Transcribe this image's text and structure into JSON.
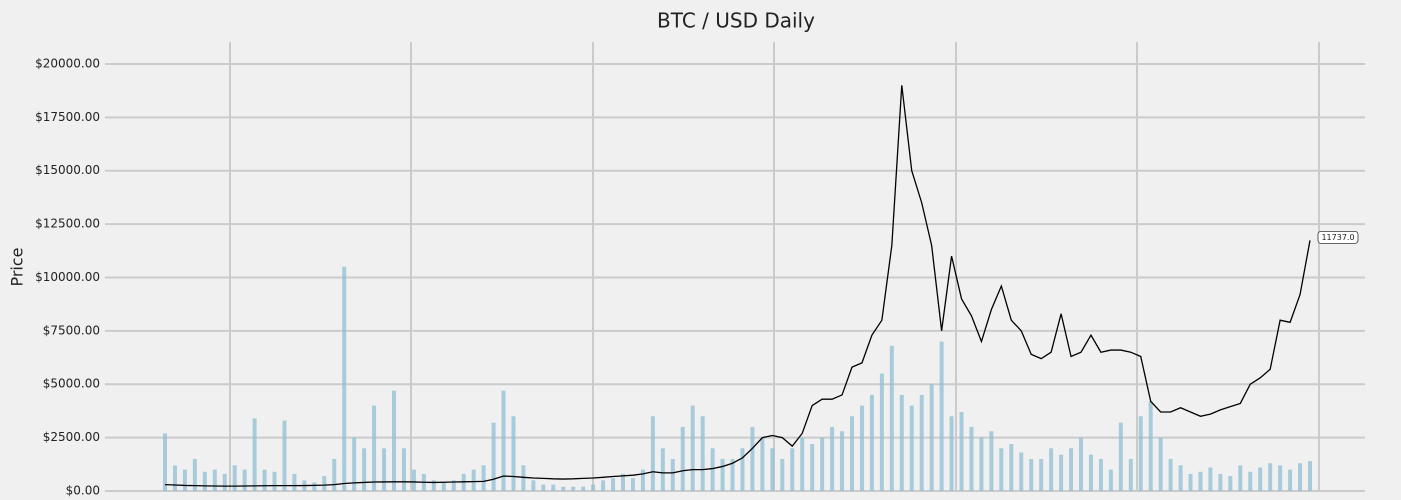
{
  "chart_data": {
    "type": "line",
    "title": "BTC / USD Daily",
    "y_label": "Price",
    "categories": [
      null,
      null,
      null,
      null,
      null,
      null,
      null,
      null,
      null,
      null,
      null,
      null,
      null,
      null,
      null,
      null,
      null,
      null,
      null,
      null,
      null,
      null,
      null,
      null,
      null,
      null,
      null,
      null,
      null,
      null,
      null,
      null,
      null,
      null,
      null,
      null,
      null,
      null,
      null,
      null,
      null,
      null,
      null,
      null,
      null,
      null,
      null,
      null,
      null,
      null,
      null,
      null,
      null,
      null,
      null,
      null,
      null,
      null,
      null,
      null,
      null,
      null,
      null,
      null,
      null,
      null,
      null,
      null,
      null,
      null,
      null,
      null,
      null,
      null,
      null,
      null,
      null,
      null,
      null,
      null,
      null,
      null,
      null,
      null,
      null,
      null,
      null,
      null,
      null,
      null,
      null,
      null,
      null,
      null,
      null,
      null,
      null,
      null,
      null,
      null,
      null,
      null,
      null,
      null,
      null,
      null,
      null,
      null,
      null,
      null,
      null,
      null,
      null,
      null,
      null,
      null
    ],
    "series": [
      {
        "color": "#000000",
        "values": [
          300,
          280,
          260,
          250,
          240,
          235,
          230,
          230,
          235,
          240,
          245,
          250,
          250,
          250,
          255,
          265,
          275,
          300,
          350,
          380,
          400,
          420,
          425,
          430,
          430,
          425,
          410,
          400,
          410,
          420,
          430,
          440,
          450,
          550,
          700,
          680,
          640,
          610,
          590,
          570,
          560,
          570,
          590,
          610,
          640,
          680,
          710,
          740,
          800,
          900,
          850,
          850,
          950,
          1000,
          1000,
          1050,
          1150,
          1300,
          1550,
          2000,
          2500,
          2600,
          2500,
          2100,
          2700,
          4000,
          4300,
          4300,
          4500,
          5800,
          6000,
          7300,
          8000,
          11500,
          19000,
          15000,
          13500,
          11500,
          7500,
          11000,
          9000,
          8200,
          7000,
          8500,
          9600,
          8000,
          7500,
          6400,
          6200,
          6500,
          8300,
          6300,
          6500,
          7300,
          6500,
          6600,
          6600,
          6500,
          6300,
          4200,
          3700,
          3700,
          3900,
          3700,
          3500,
          3600,
          3800,
          3950,
          4100,
          5000,
          5300,
          5700,
          8000,
          7900,
          9200,
          11737
        ],
        "value_labels": [
          null,
          null,
          null,
          null,
          null,
          null,
          null,
          null,
          null,
          null,
          null,
          null,
          null,
          null,
          null,
          null,
          null,
          null,
          null,
          null,
          null,
          null,
          null,
          null,
          null,
          null,
          null,
          null,
          null,
          null,
          null,
          null,
          null,
          null,
          null,
          null,
          null,
          null,
          null,
          null,
          null,
          null,
          null,
          null,
          null,
          null,
          null,
          null,
          null,
          null,
          null,
          null,
          null,
          null,
          null,
          null,
          null,
          null,
          null,
          null,
          null,
          null,
          null,
          null,
          null,
          null,
          null,
          null,
          null,
          null,
          null,
          null,
          null,
          null,
          null,
          null,
          null,
          null,
          null,
          null,
          null,
          null,
          null,
          null,
          null,
          null,
          null,
          null,
          null,
          null,
          null,
          null,
          null,
          null,
          null,
          null,
          null,
          null,
          null,
          null,
          null,
          null,
          null,
          null,
          null,
          null,
          null,
          null,
          null,
          null,
          null,
          null,
          null,
          null,
          null,
          "11737.0"
        ]
      },
      {
        "type": "bar",
        "axis": "y2",
        "color": "#8fbfd4",
        "values": [
          2700,
          1200,
          1000,
          1500,
          900,
          1000,
          800,
          1200,
          1000,
          3400,
          1000,
          900,
          3300,
          800,
          500,
          400,
          700,
          1500,
          10500,
          2500,
          2000,
          4000,
          2000,
          4700,
          2000,
          1000,
          800,
          500,
          400,
          500,
          800,
          1000,
          1200,
          3200,
          4700,
          3500,
          1200,
          500,
          300,
          300,
          200,
          200,
          200,
          300,
          500,
          600,
          800,
          600,
          1000,
          3500,
          2000,
          1500,
          3000,
          4000,
          3500,
          2000,
          1500,
          1500,
          2000,
          3000,
          2500,
          2000,
          1500,
          2000,
          2500,
          2200,
          2500,
          3000,
          2800,
          3500,
          4000,
          4500,
          5500,
          6800,
          4500,
          4000,
          4500,
          5000,
          7000,
          3500,
          3700,
          3000,
          2500,
          2800,
          2000,
          2200,
          1800,
          1500,
          1500,
          2000,
          1700,
          2000,
          2500,
          1700,
          1500,
          1000,
          3200,
          1500,
          3500,
          4200,
          2500,
          1500,
          1200,
          800,
          900,
          1100,
          800,
          700,
          1200,
          900,
          1100,
          1300,
          1200,
          1000,
          1300,
          1400
        ]
      }
    ],
    "ylim": [
      0,
      21000
    ],
    "y2lim": [
      0,
      21000
    ],
    "yticks": [
      {
        "value": 0,
        "label": "$0.00"
      },
      {
        "value": 2500,
        "label": "$2500.00"
      },
      {
        "value": 5000,
        "label": "$5000.00"
      },
      {
        "value": 7500,
        "label": "$7500.00"
      },
      {
        "value": 10000,
        "label": "$10000.00"
      },
      {
        "value": 12500,
        "label": "$12500.00"
      },
      {
        "value": 15000,
        "label": "$15000.00"
      },
      {
        "value": 17500,
        "label": "$17500.00"
      },
      {
        "value": 20000,
        "label": "$20000.00"
      }
    ],
    "grid": true
  }
}
